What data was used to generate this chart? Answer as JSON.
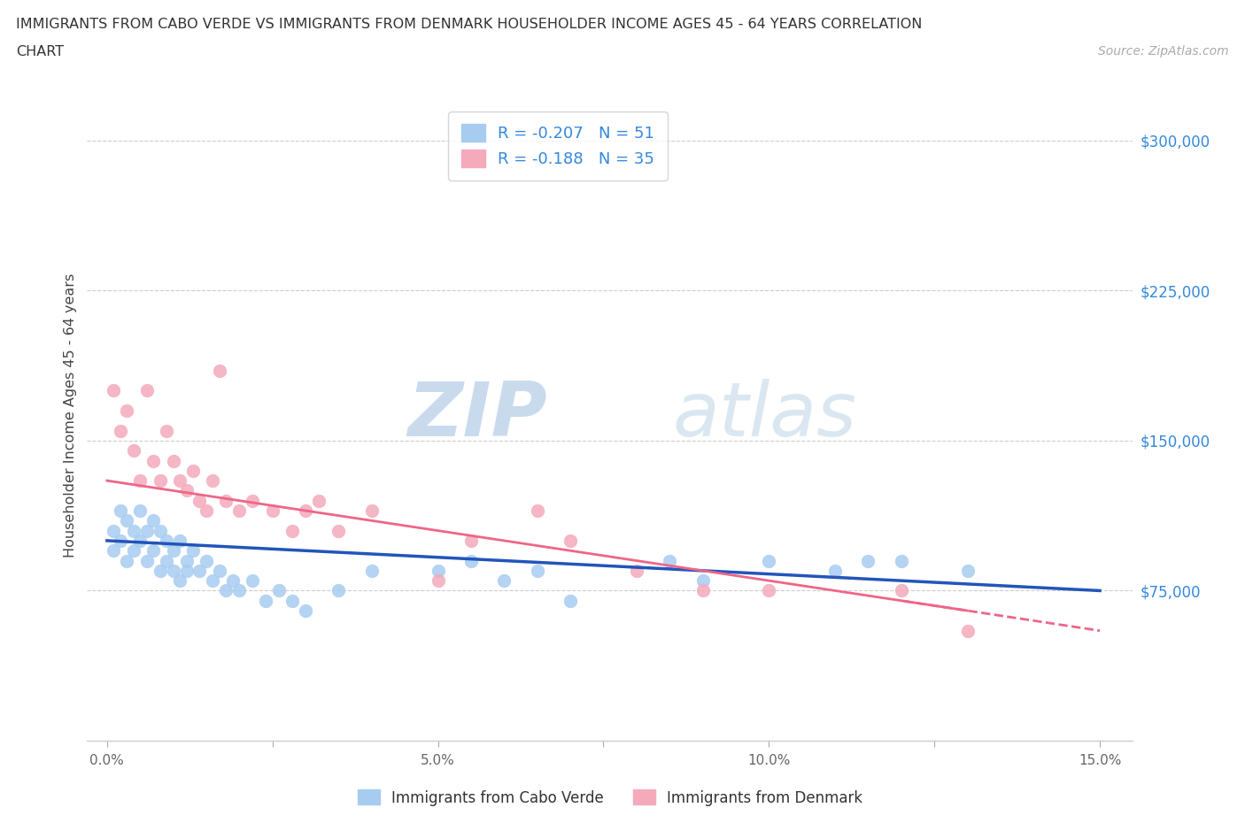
{
  "title_line1": "IMMIGRANTS FROM CABO VERDE VS IMMIGRANTS FROM DENMARK HOUSEHOLDER INCOME AGES 45 - 64 YEARS CORRELATION",
  "title_line2": "CHART",
  "source_text": "Source: ZipAtlas.com",
  "watermark_zip": "ZIP",
  "watermark_atlas": "atlas",
  "ylabel": "Householder Income Ages 45 - 64 years",
  "xmin": 0.0,
  "xmax": 0.15,
  "ymin": 0,
  "ymax": 325000,
  "yticks": [
    75000,
    150000,
    225000,
    300000
  ],
  "ytick_labels": [
    "$75,000",
    "$150,000",
    "$225,000",
    "$300,000"
  ],
  "xticks": [
    0.0,
    0.025,
    0.05,
    0.075,
    0.1,
    0.125,
    0.15
  ],
  "xtick_labels": [
    "0.0%",
    "",
    "5.0%",
    "",
    "10.0%",
    "",
    "15.0%"
  ],
  "cabo_verde_color": "#A8CCF0",
  "denmark_color": "#F4AABB",
  "cabo_verde_R": -0.207,
  "cabo_verde_N": 51,
  "denmark_R": -0.188,
  "denmark_N": 35,
  "cabo_verde_line_color": "#2255BB",
  "denmark_line_color": "#EE6688",
  "legend_label_1": "Immigrants from Cabo Verde",
  "legend_label_2": "Immigrants from Denmark",
  "cabo_verde_x": [
    0.001,
    0.001,
    0.002,
    0.002,
    0.003,
    0.003,
    0.004,
    0.004,
    0.005,
    0.005,
    0.006,
    0.006,
    0.007,
    0.007,
    0.008,
    0.008,
    0.009,
    0.009,
    0.01,
    0.01,
    0.011,
    0.011,
    0.012,
    0.012,
    0.013,
    0.014,
    0.015,
    0.016,
    0.017,
    0.018,
    0.019,
    0.02,
    0.022,
    0.024,
    0.026,
    0.028,
    0.03,
    0.035,
    0.04,
    0.05,
    0.055,
    0.06,
    0.065,
    0.07,
    0.085,
    0.09,
    0.1,
    0.11,
    0.115,
    0.12,
    0.13
  ],
  "cabo_verde_y": [
    105000,
    95000,
    115000,
    100000,
    110000,
    90000,
    105000,
    95000,
    115000,
    100000,
    105000,
    90000,
    110000,
    95000,
    105000,
    85000,
    100000,
    90000,
    95000,
    85000,
    100000,
    80000,
    90000,
    85000,
    95000,
    85000,
    90000,
    80000,
    85000,
    75000,
    80000,
    75000,
    80000,
    70000,
    75000,
    70000,
    65000,
    75000,
    85000,
    85000,
    90000,
    80000,
    85000,
    70000,
    90000,
    80000,
    90000,
    85000,
    90000,
    90000,
    85000
  ],
  "denmark_x": [
    0.001,
    0.002,
    0.003,
    0.004,
    0.005,
    0.006,
    0.007,
    0.008,
    0.009,
    0.01,
    0.011,
    0.012,
    0.013,
    0.014,
    0.015,
    0.016,
    0.017,
    0.018,
    0.02,
    0.022,
    0.025,
    0.028,
    0.03,
    0.032,
    0.035,
    0.04,
    0.05,
    0.055,
    0.065,
    0.07,
    0.08,
    0.09,
    0.1,
    0.12,
    0.13
  ],
  "denmark_y": [
    175000,
    155000,
    165000,
    145000,
    130000,
    175000,
    140000,
    130000,
    155000,
    140000,
    130000,
    125000,
    135000,
    120000,
    115000,
    130000,
    185000,
    120000,
    115000,
    120000,
    115000,
    105000,
    115000,
    120000,
    105000,
    115000,
    80000,
    100000,
    115000,
    100000,
    85000,
    75000,
    75000,
    75000,
    55000
  ]
}
